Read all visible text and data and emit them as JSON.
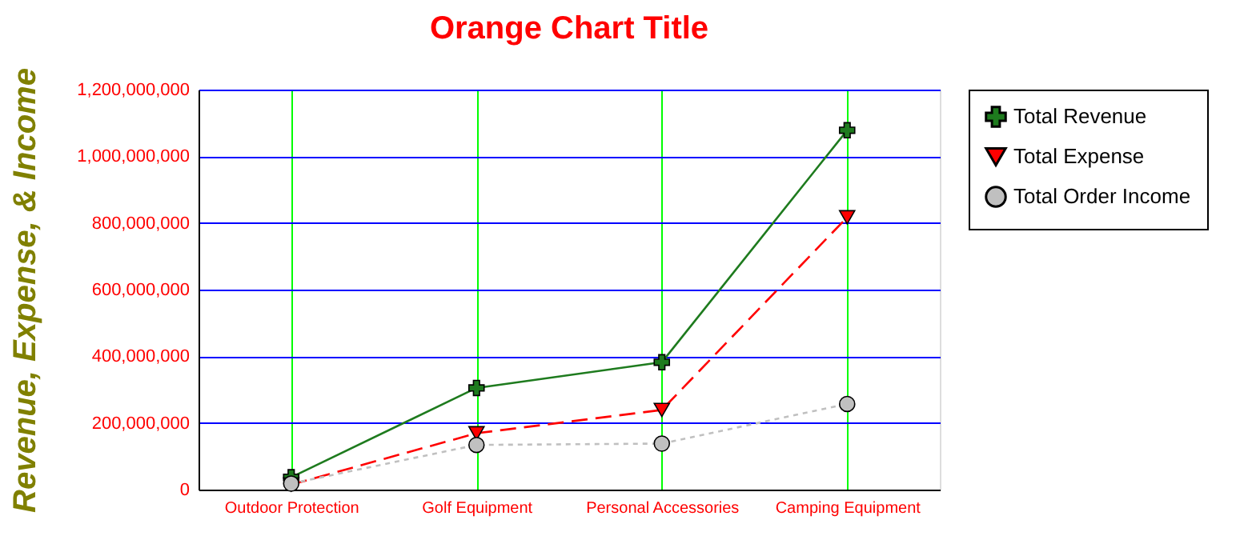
{
  "chart_data": {
    "type": "line",
    "title": "Orange Chart Title",
    "ylabel": "Revenue, Expense, & Income",
    "categories": [
      "Outdoor Protection",
      "Golf Equipment",
      "Personal Accessories",
      "Camping Equipment"
    ],
    "ylim": [
      0,
      1200000000
    ],
    "yticks": [
      0,
      {
        "value": 200000000,
        "label": "200,000,000"
      },
      {
        "value": 400000000,
        "label": "400,000,000"
      },
      {
        "value": 600000000,
        "label": "600,000,000"
      },
      {
        "value": 800000000,
        "label": "800,000,000"
      },
      {
        "value": 1000000000,
        "label": "1,000,000,000"
      },
      {
        "value": 1200000000,
        "label": "1,200,000,000"
      }
    ],
    "grid": true,
    "legend": "right",
    "series": [
      {
        "name": "Total Revenue",
        "color": "#1e7b1e",
        "values": [
          37000000,
          305000000,
          382000000,
          1078000000
        ],
        "marker": "cross",
        "line_style": "solid"
      },
      {
        "name": "Total Expense",
        "color": "#ff0000",
        "values": [
          15000000,
          169000000,
          239000000,
          817000000
        ],
        "marker": "triangle",
        "line_style": "dashed"
      },
      {
        "name": "Total Order Income",
        "color": "#c0c0c0",
        "values": [
          18000000,
          134000000,
          138000000,
          257000000
        ],
        "marker": "circle",
        "line_style": "dotted"
      }
    ]
  }
}
